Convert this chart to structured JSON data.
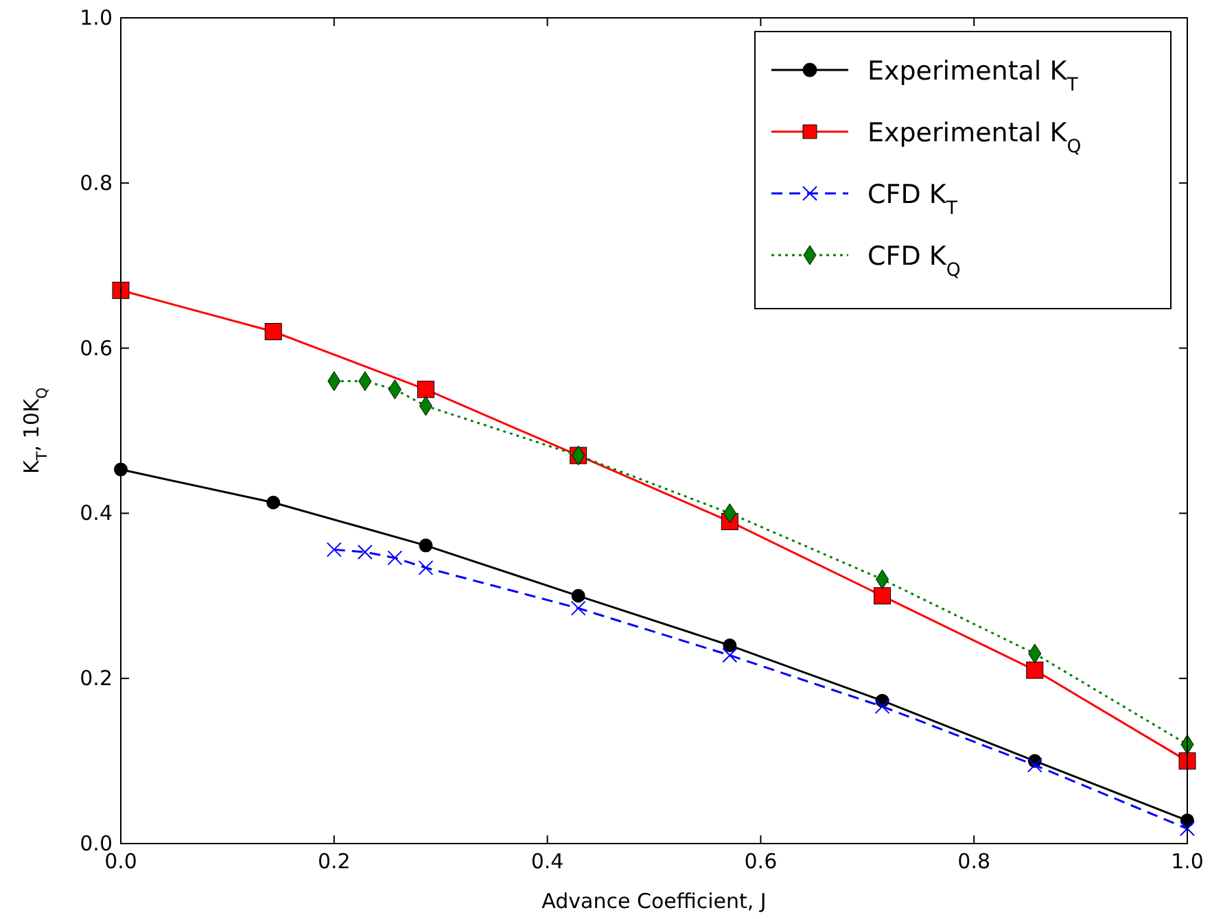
{
  "chart_data": {
    "type": "line",
    "xlabel": "Advance Coefficient, J",
    "ylabel": "K$_{T}$, 10K$_{Q}$",
    "xlim": [
      0,
      1
    ],
    "ylim": [
      0,
      1
    ],
    "xticks": [
      {
        "value": 0,
        "label": "0.0"
      },
      0.2,
      0.4,
      0.6,
      0.8,
      {
        "value": 1,
        "label": "1.0"
      }
    ],
    "yticks": [
      {
        "value": 0,
        "label": "0.0"
      },
      0.2,
      0.4,
      0.6,
      0.8,
      {
        "value": 1,
        "label": "1.0"
      }
    ],
    "grid": false,
    "legend": "top right",
    "series": [
      {
        "name": "Experimental K$_{T}$",
        "color": "#000000",
        "marker": "circle",
        "line_style": "solid",
        "x": [
          0,
          0.143,
          0.286,
          0.429,
          0.571,
          0.714,
          0.857,
          1.0
        ],
        "values": [
          0.453,
          0.413,
          0.361,
          0.3,
          0.24,
          0.173,
          0.1,
          0.028
        ]
      },
      {
        "name": "Experimental K$_{Q}$",
        "color": "#ff0000",
        "marker": "square",
        "line_style": "solid",
        "x": [
          0,
          0.143,
          0.286,
          0.429,
          0.571,
          0.714,
          0.857,
          1.0
        ],
        "values": [
          0.67,
          0.62,
          0.55,
          0.47,
          0.39,
          0.3,
          0.21,
          0.1
        ]
      },
      {
        "name": "CFD K$_{T}$",
        "color": "#0000ff",
        "marker": "cross",
        "line_style": "dashed",
        "x": [
          0.2,
          0.229,
          0.257,
          0.286,
          0.429,
          0.571,
          0.714,
          0.857,
          1.0
        ],
        "values": [
          0.356,
          0.353,
          0.346,
          0.334,
          0.285,
          0.228,
          0.166,
          0.095,
          0.018
        ]
      },
      {
        "name": "CFD K$_{Q}$",
        "color": "#008000",
        "marker": "diamond",
        "line_style": "dotted",
        "x": [
          0.2,
          0.229,
          0.257,
          0.286,
          0.429,
          0.571,
          0.714,
          0.857,
          1.0
        ],
        "values": [
          0.56,
          0.56,
          0.55,
          0.53,
          0.47,
          0.4,
          0.32,
          0.23,
          0.12
        ]
      }
    ]
  }
}
